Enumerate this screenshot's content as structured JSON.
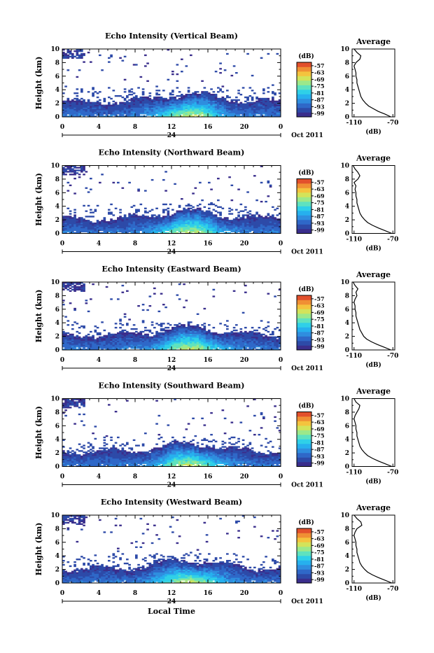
{
  "colors": {
    "scale": [
      "#3a2e8c",
      "#2d4aa8",
      "#2f68c8",
      "#2f8edf",
      "#26b0ee",
      "#2fd0e8",
      "#5fe2bf",
      "#9ce88a",
      "#d3e35a",
      "#f4c33e",
      "#f08f34",
      "#e2502c"
    ]
  },
  "chart_data": [
    {
      "type": "heatmap",
      "title": "Echo Intensity (Vertical Beam)",
      "ylabel": "Height (km)",
      "ylim": [
        0,
        10
      ],
      "x_ticks": [
        "0",
        "4",
        "8",
        "12",
        "16",
        "20",
        "0"
      ],
      "xlim": [
        0,
        24
      ],
      "day_label": "24",
      "date_label": "Oct 2011",
      "colorbar": {
        "unit": "(dB)",
        "ticks": [
          "-57",
          "-63",
          "-69",
          "-75",
          "-81",
          "-87",
          "-93",
          "-99"
        ],
        "range": [
          -102,
          -54
        ]
      },
      "profile": {
        "title": "Average",
        "xlabel": "(dB)",
        "x_ticks": [
          "-110",
          "-70"
        ],
        "xlim": [
          -112,
          -68
        ],
        "heights": [
          0,
          0.4,
          0.8,
          1.2,
          1.6,
          2,
          2.5,
          3,
          3.5,
          4,
          4.5,
          5,
          5.5,
          6,
          6.5,
          7,
          7.5,
          8,
          8.5,
          9,
          9.5,
          10
        ],
        "values": [
          -72,
          -78,
          -85,
          -90,
          -95,
          -98,
          -101,
          -103,
          -104,
          -105,
          -106,
          -107,
          -107,
          -108,
          -108,
          -109,
          -110,
          -108,
          -104,
          -103,
          -107,
          -110
        ]
      }
    },
    {
      "type": "heatmap",
      "title": "Echo Intensity (Northward Beam)",
      "ylabel": "Height (km)",
      "ylim": [
        0,
        10
      ],
      "x_ticks": [
        "0",
        "4",
        "8",
        "12",
        "16",
        "20",
        "0"
      ],
      "xlim": [
        0,
        24
      ],
      "day_label": "24",
      "date_label": "Oct 2011",
      "colorbar": {
        "unit": "(dB)",
        "ticks": [
          "-57",
          "-63",
          "-69",
          "-75",
          "-81",
          "-87",
          "-93",
          "-99"
        ],
        "range": [
          -102,
          -54
        ]
      },
      "profile": {
        "title": "Average",
        "xlabel": "(dB)",
        "x_ticks": [
          "-110",
          "-70"
        ],
        "xlim": [
          -112,
          -68
        ],
        "heights": [
          0,
          0.4,
          0.8,
          1.2,
          1.6,
          2,
          2.5,
          3,
          3.5,
          4,
          4.5,
          5,
          5.5,
          6,
          6.5,
          7,
          7.5,
          8,
          8.5,
          9,
          9.5,
          10
        ],
        "values": [
          -71,
          -78,
          -85,
          -91,
          -96,
          -99,
          -102,
          -104,
          -105,
          -106,
          -107,
          -107,
          -108,
          -108,
          -109,
          -108,
          -110,
          -106,
          -104,
          -106,
          -109,
          -111
        ]
      }
    },
    {
      "type": "heatmap",
      "title": "Echo Intensity (Eastward Beam)",
      "ylabel": "Height (km)",
      "ylim": [
        0,
        10
      ],
      "x_ticks": [
        "0",
        "4",
        "8",
        "12",
        "16",
        "20",
        "0"
      ],
      "xlim": [
        0,
        24
      ],
      "day_label": "24",
      "date_label": "Oct 2011",
      "colorbar": {
        "unit": "(dB)",
        "ticks": [
          "-57",
          "-63",
          "-69",
          "-75",
          "-81",
          "-87",
          "-93",
          "-99"
        ],
        "range": [
          -102,
          -54
        ]
      },
      "profile": {
        "title": "Average",
        "xlabel": "(dB)",
        "x_ticks": [
          "-110",
          "-70"
        ],
        "xlim": [
          -112,
          -68
        ],
        "heights": [
          0,
          0.4,
          0.8,
          1.2,
          1.6,
          2,
          2.5,
          3,
          3.5,
          4,
          4.5,
          5,
          5.5,
          6,
          6.5,
          7,
          7.5,
          8,
          8.5,
          9,
          9.5,
          10
        ],
        "values": [
          -72,
          -79,
          -86,
          -92,
          -97,
          -100,
          -102,
          -104,
          -105,
          -106,
          -107,
          -108,
          -108,
          -109,
          -109,
          -110,
          -109,
          -107,
          -108,
          -106,
          -109,
          -111
        ]
      }
    },
    {
      "type": "heatmap",
      "title": "Echo Intensity (Southward Beam)",
      "ylabel": "Height (km)",
      "ylim": [
        0,
        10
      ],
      "x_ticks": [
        "0",
        "4",
        "8",
        "12",
        "16",
        "20",
        "0"
      ],
      "xlim": [
        0,
        24
      ],
      "day_label": "24",
      "date_label": "Oct 2011",
      "colorbar": {
        "unit": "(dB)",
        "ticks": [
          "-57",
          "-63",
          "-69",
          "-75",
          "-81",
          "-87",
          "-93",
          "-99"
        ],
        "range": [
          -102,
          -54
        ]
      },
      "profile": {
        "title": "Average",
        "xlabel": "(dB)",
        "x_ticks": [
          "-110",
          "-70"
        ],
        "xlim": [
          -112,
          -68
        ],
        "heights": [
          0,
          0.4,
          0.8,
          1.2,
          1.6,
          2,
          2.5,
          3,
          3.5,
          4,
          4.5,
          5,
          5.5,
          6,
          6.5,
          7,
          7.5,
          8,
          8.5,
          9,
          9.5,
          10
        ],
        "values": [
          -71,
          -78,
          -85,
          -91,
          -96,
          -99,
          -102,
          -104,
          -105,
          -106,
          -107,
          -107,
          -108,
          -108,
          -109,
          -110,
          -109,
          -107,
          -105,
          -104,
          -108,
          -110
        ]
      }
    },
    {
      "type": "heatmap",
      "title": "Echo Intensity (Westward Beam)",
      "ylabel": "Height (km)",
      "ylim": [
        0,
        10
      ],
      "x_ticks": [
        "0",
        "4",
        "8",
        "12",
        "16",
        "20",
        "0"
      ],
      "xlim": [
        0,
        24
      ],
      "day_label": "24",
      "date_label": "Oct 2011",
      "xlabel": "Local Time",
      "colorbar": {
        "unit": "(dB)",
        "ticks": [
          "-57",
          "-63",
          "-69",
          "-75",
          "-81",
          "-87",
          "-93",
          "-99"
        ],
        "range": [
          -102,
          -54
        ]
      },
      "profile": {
        "title": "Average",
        "xlabel": "(dB)",
        "x_ticks": [
          "-110",
          "-70"
        ],
        "xlim": [
          -112,
          -68
        ],
        "heights": [
          0,
          0.4,
          0.8,
          1.2,
          1.6,
          2,
          2.5,
          3,
          3.5,
          4,
          4.5,
          5,
          5.5,
          6,
          6.5,
          7,
          7.5,
          8,
          8.5,
          9,
          9.5,
          10
        ],
        "values": [
          -71,
          -78,
          -85,
          -91,
          -96,
          -99,
          -102,
          -104,
          -105,
          -106,
          -107,
          -107,
          -108,
          -108,
          -109,
          -110,
          -109,
          -107,
          -102,
          -103,
          -107,
          -110
        ]
      }
    }
  ]
}
